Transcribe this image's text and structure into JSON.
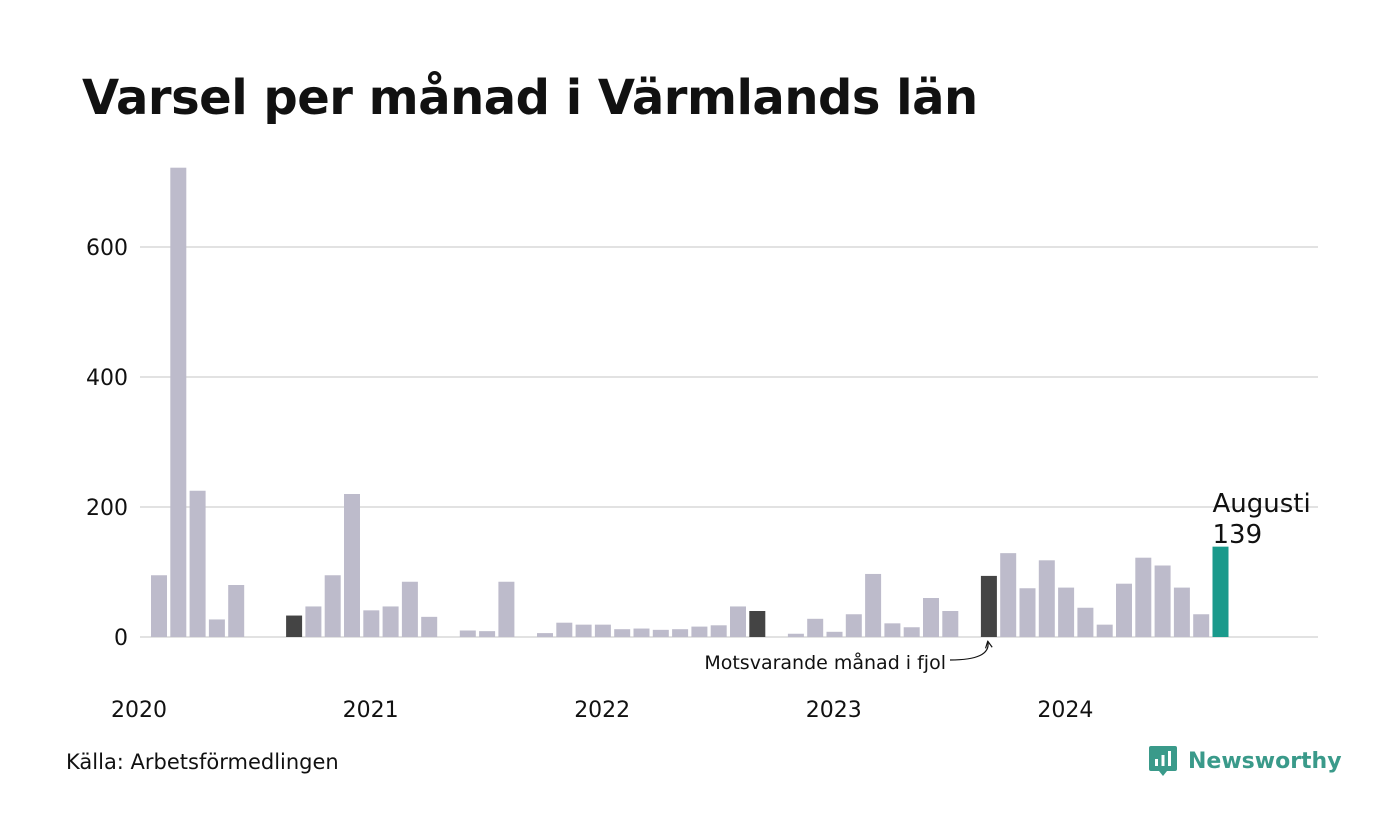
{
  "title": "Varsel per månad i Värmlands län",
  "source": "Källa: Arbetsförmedlingen",
  "brand": {
    "name": "Newsworthy",
    "icon": "newsworthy-logo-icon",
    "color": "#3a9a8a"
  },
  "chart_data": {
    "type": "bar",
    "y_ticks": [
      "0",
      "200",
      "400",
      "600"
    ],
    "x_tick_labels": [
      "2020",
      "2021",
      "2022",
      "2023",
      "2024"
    ],
    "ylim": [
      0,
      720
    ],
    "grid": true,
    "colors": {
      "default": "#bdbbcb",
      "same_month": "#444444",
      "latest": "#1a9a8c",
      "grid": "#e2e2e2"
    },
    "months": [
      "2020-01",
      "2020-02",
      "2020-03",
      "2020-04",
      "2020-05",
      "2020-06",
      "2020-07",
      "2020-08",
      "2020-09",
      "2020-10",
      "2020-11",
      "2020-12",
      "2021-01",
      "2021-02",
      "2021-03",
      "2021-04",
      "2021-05",
      "2021-06",
      "2021-07",
      "2021-08",
      "2021-09",
      "2021-10",
      "2021-11",
      "2021-12",
      "2022-01",
      "2022-02",
      "2022-03",
      "2022-04",
      "2022-05",
      "2022-06",
      "2022-07",
      "2022-08",
      "2022-09",
      "2022-10",
      "2022-11",
      "2022-12",
      "2023-01",
      "2023-02",
      "2023-03",
      "2023-04",
      "2023-05",
      "2023-06",
      "2023-07",
      "2023-08",
      "2023-09",
      "2023-10",
      "2023-11",
      "2023-12",
      "2024-01",
      "2024-02",
      "2024-03",
      "2024-04",
      "2024-05",
      "2024-06",
      "2024-07",
      "2024-08"
    ],
    "values": [
      95,
      722,
      225,
      27,
      80,
      0,
      0,
      33,
      47,
      95,
      220,
      41,
      47,
      85,
      31,
      0,
      10,
      9,
      85,
      0,
      6,
      22,
      19,
      19,
      12,
      13,
      11,
      12,
      16,
      18,
      47,
      40,
      0,
      5,
      28,
      8,
      35,
      97,
      21,
      15,
      60,
      40,
      0,
      94,
      129,
      75,
      118,
      76,
      45,
      19,
      82,
      122,
      110,
      76,
      35,
      139
    ],
    "highlight_same_month": [
      "2020-08",
      "2022-08",
      "2023-08"
    ],
    "latest": {
      "month": "2024-08",
      "label": "Augusti",
      "value_label": "139"
    },
    "annotation": "Motsvarande månad i fjol"
  }
}
